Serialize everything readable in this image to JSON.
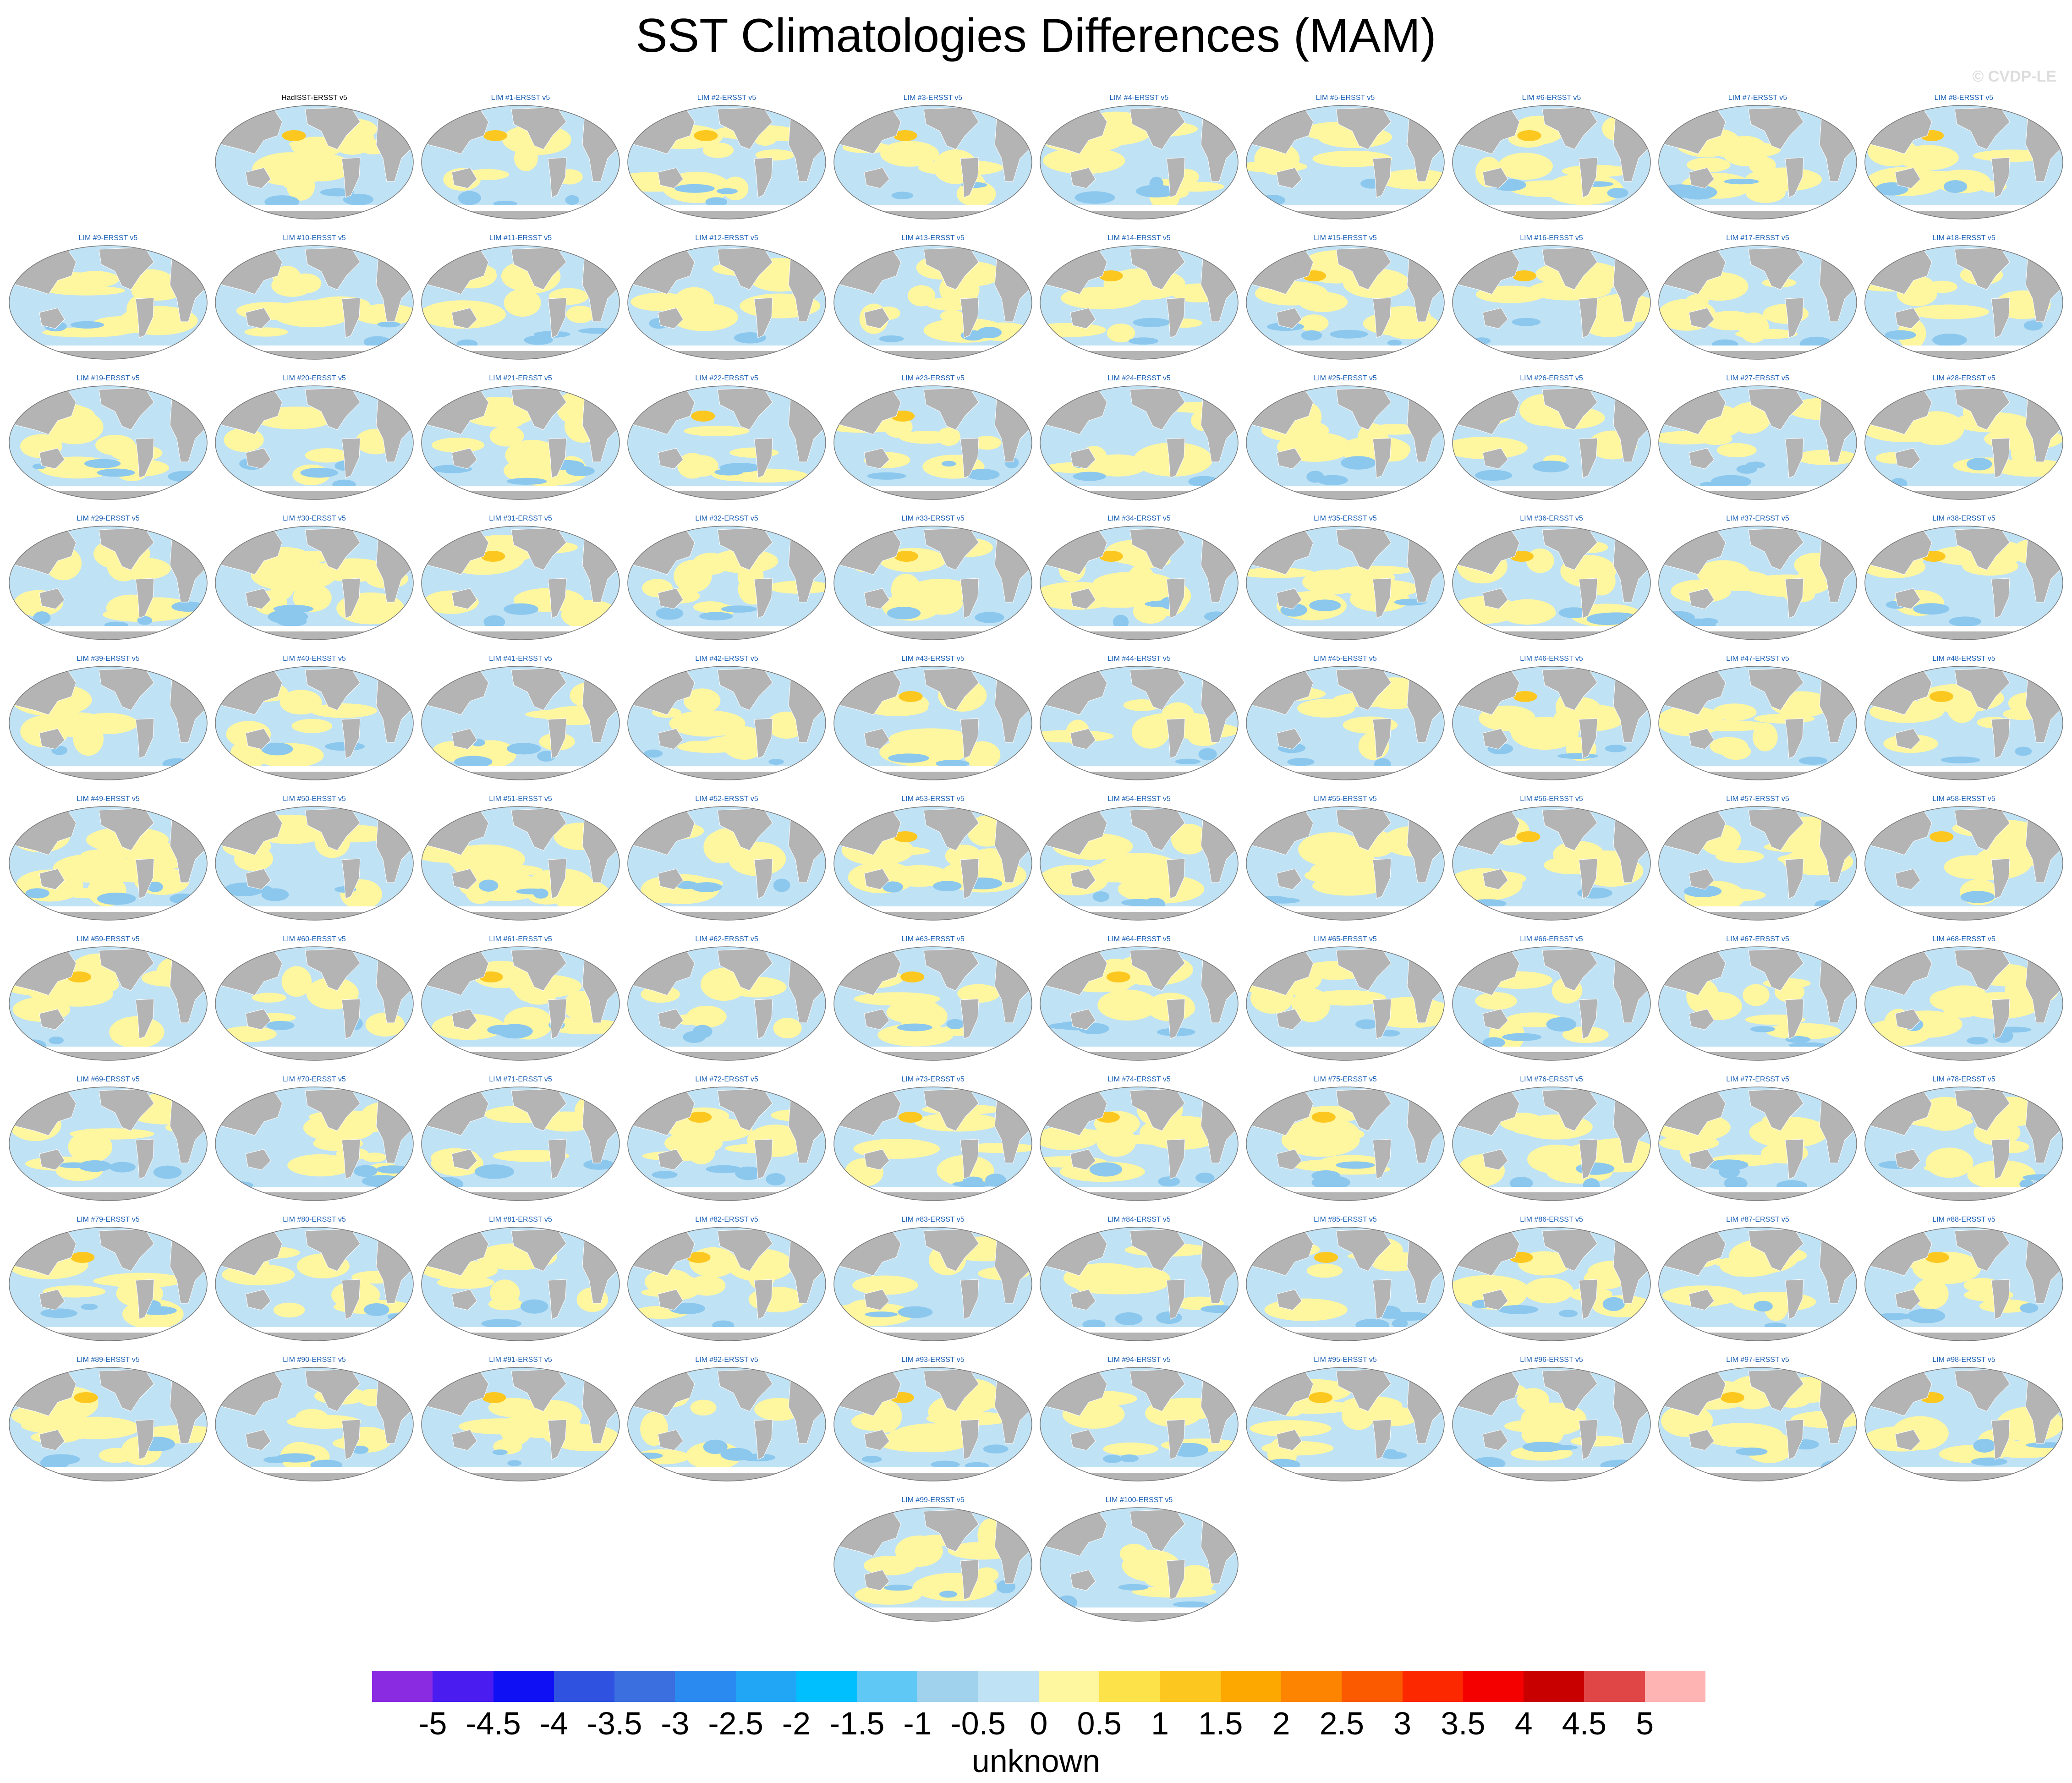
{
  "title": "SST Climatologies Differences (MAM)",
  "watermark": "© CVDP-LE",
  "units": "unknown",
  "legend": {
    "colors": [
      "#8a2be2",
      "#4a1cf0",
      "#1010f5",
      "#2f52e0",
      "#3b6fe0",
      "#2a8af0",
      "#20a6f5",
      "#00bfff",
      "#60c8f5",
      "#a0d2ee",
      "#c0e2f5",
      "#fff6a0",
      "#fde24a",
      "#fcc820",
      "#fca800",
      "#fc8400",
      "#fc5a00",
      "#fc2800",
      "#f50000",
      "#c80000",
      "#e04646",
      "#ffb4b4"
    ],
    "tick_labels": [
      "-5",
      "-4.5",
      "-4",
      "-3.5",
      "-3",
      "-2.5",
      "-2",
      "-1.5",
      "-1",
      "-0.5",
      "0",
      "0.5",
      "1",
      "1.5",
      "2",
      "2.5",
      "3",
      "3.5",
      "4",
      "4.5",
      "5"
    ]
  },
  "map_colors": {
    "land": "#b4b4b4",
    "ocean_cool": "#c0e2f5",
    "ocean_warm": "#fff6a0",
    "cold": "#8cc8ee",
    "hot": "#fcc820"
  },
  "panels": [
    "HadISST-ERSST v5",
    "LIM #1-ERSST v5",
    "LIM #2-ERSST v5",
    "LIM #3-ERSST v5",
    "LIM #4-ERSST v5",
    "LIM #5-ERSST v5",
    "LIM #6-ERSST v5",
    "LIM #7-ERSST v5",
    "LIM #8-ERSST v5",
    "LIM #9-ERSST v5",
    "LIM #10-ERSST v5",
    "LIM #11-ERSST v5",
    "LIM #12-ERSST v5",
    "LIM #13-ERSST v5",
    "LIM #14-ERSST v5",
    "LIM #15-ERSST v5",
    "LIM #16-ERSST v5",
    "LIM #17-ERSST v5",
    "LIM #18-ERSST v5",
    "LIM #19-ERSST v5",
    "LIM #20-ERSST v5",
    "LIM #21-ERSST v5",
    "LIM #22-ERSST v5",
    "LIM #23-ERSST v5",
    "LIM #24-ERSST v5",
    "LIM #25-ERSST v5",
    "LIM #26-ERSST v5",
    "LIM #27-ERSST v5",
    "LIM #28-ERSST v5",
    "LIM #29-ERSST v5",
    "LIM #30-ERSST v5",
    "LIM #31-ERSST v5",
    "LIM #32-ERSST v5",
    "LIM #33-ERSST v5",
    "LIM #34-ERSST v5",
    "LIM #35-ERSST v5",
    "LIM #36-ERSST v5",
    "LIM #37-ERSST v5",
    "LIM #38-ERSST v5",
    "LIM #39-ERSST v5",
    "LIM #40-ERSST v5",
    "LIM #41-ERSST v5",
    "LIM #42-ERSST v5",
    "LIM #43-ERSST v5",
    "LIM #44-ERSST v5",
    "LIM #45-ERSST v5",
    "LIM #46-ERSST v5",
    "LIM #47-ERSST v5",
    "LIM #48-ERSST v5",
    "LIM #49-ERSST v5",
    "LIM #50-ERSST v5",
    "LIM #51-ERSST v5",
    "LIM #52-ERSST v5",
    "LIM #53-ERSST v5",
    "LIM #54-ERSST v5",
    "LIM #55-ERSST v5",
    "LIM #56-ERSST v5",
    "LIM #57-ERSST v5",
    "LIM #58-ERSST v5",
    "LIM #59-ERSST v5",
    "LIM #60-ERSST v5",
    "LIM #61-ERSST v5",
    "LIM #62-ERSST v5",
    "LIM #63-ERSST v5",
    "LIM #64-ERSST v5",
    "LIM #65-ERSST v5",
    "LIM #66-ERSST v5",
    "LIM #67-ERSST v5",
    "LIM #68-ERSST v5",
    "LIM #69-ERSST v5",
    "LIM #70-ERSST v5",
    "LIM #71-ERSST v5",
    "LIM #72-ERSST v5",
    "LIM #73-ERSST v5",
    "LIM #74-ERSST v5",
    "LIM #75-ERSST v5",
    "LIM #76-ERSST v5",
    "LIM #77-ERSST v5",
    "LIM #78-ERSST v5",
    "LIM #79-ERSST v5",
    "LIM #80-ERSST v5",
    "LIM #81-ERSST v5",
    "LIM #82-ERSST v5",
    "LIM #83-ERSST v5",
    "LIM #84-ERSST v5",
    "LIM #85-ERSST v5",
    "LIM #86-ERSST v5",
    "LIM #87-ERSST v5",
    "LIM #88-ERSST v5",
    "LIM #89-ERSST v5",
    "LIM #90-ERSST v5",
    "LIM #91-ERSST v5",
    "LIM #92-ERSST v5",
    "LIM #93-ERSST v5",
    "LIM #94-ERSST v5",
    "LIM #95-ERSST v5",
    "LIM #96-ERSST v5",
    "LIM #97-ERSST v5",
    "LIM #98-ERSST v5",
    "LIM #99-ERSST v5",
    "LIM #100-ERSST v5"
  ]
}
